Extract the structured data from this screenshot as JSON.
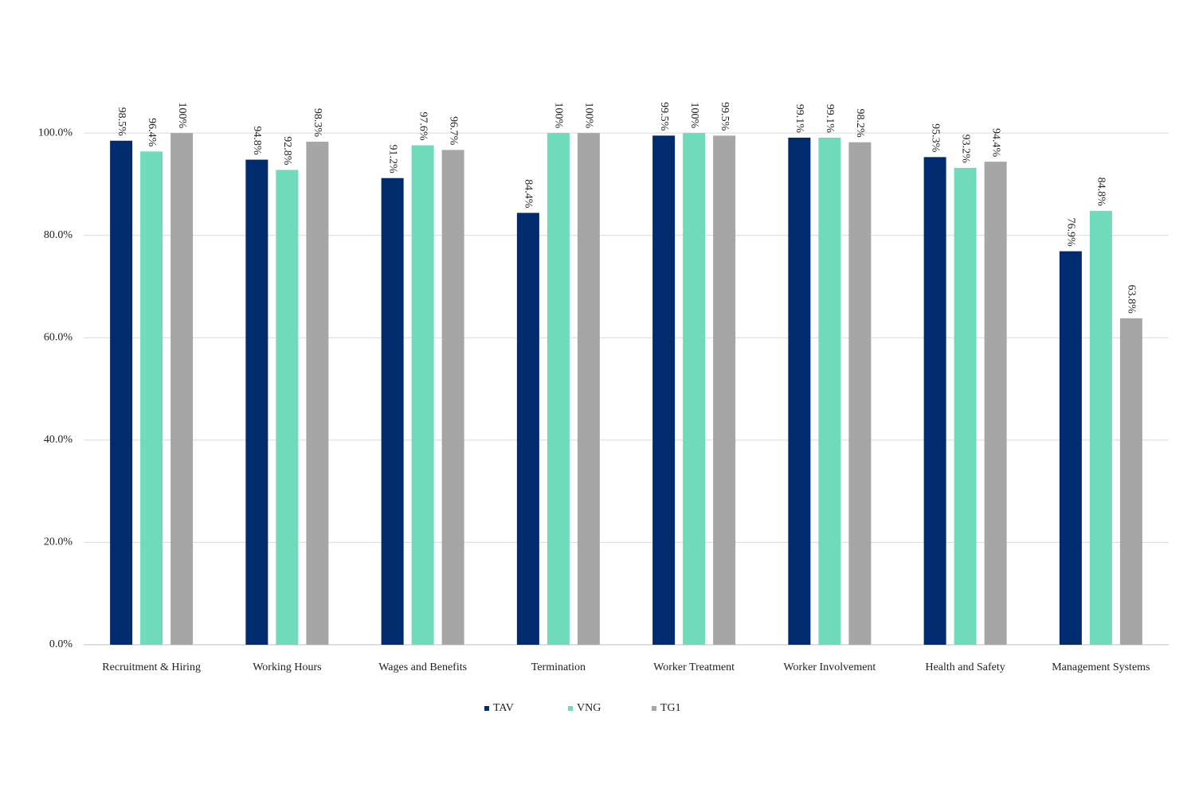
{
  "chart_data": {
    "type": "bar",
    "categories": [
      "Recruitment & Hiring",
      "Working Hours",
      "Wages and Benefits",
      "Termination",
      "Worker Treatment",
      "Worker Involvement",
      "Health and Safety",
      "Management Systems"
    ],
    "series": [
      {
        "name": "TAV",
        "color": "#002b6e",
        "values": [
          98.5,
          94.8,
          91.2,
          84.4,
          99.5,
          99.1,
          95.3,
          76.9
        ],
        "value_labels": [
          "98.5%",
          "94.8%",
          "91.2%",
          "84.4%",
          "99.5%",
          "99.1%",
          "95.3%",
          "76.9%"
        ]
      },
      {
        "name": "VNG",
        "color": "#6fdbbb",
        "values": [
          96.4,
          92.8,
          97.6,
          100,
          100,
          99.1,
          93.2,
          84.8
        ],
        "value_labels": [
          "96.4%",
          "92.8%",
          "97.6%",
          "100%",
          "100%",
          "99.1%",
          "93.2%",
          "84.8%"
        ]
      },
      {
        "name": "TG1",
        "color": "#a6a6a6",
        "values": [
          100,
          98.3,
          96.7,
          100,
          99.5,
          98.2,
          94.4,
          63.8
        ],
        "value_labels": [
          "100%",
          "98.3%",
          "96.7%",
          "100%",
          "99.5%",
          "98.2%",
          "94.4%",
          "63.8%"
        ]
      }
    ],
    "ylim": [
      0,
      112
    ],
    "yticks": [
      {
        "value": 0,
        "label": "0.0%"
      },
      {
        "value": 20,
        "label": "20.0%"
      },
      {
        "value": 40,
        "label": "40.0%"
      },
      {
        "value": 60,
        "label": "60.0%"
      },
      {
        "value": 80,
        "label": "80.0%"
      },
      {
        "value": 100,
        "label": "100.0%"
      }
    ],
    "grid": true,
    "legend": "bottom"
  }
}
